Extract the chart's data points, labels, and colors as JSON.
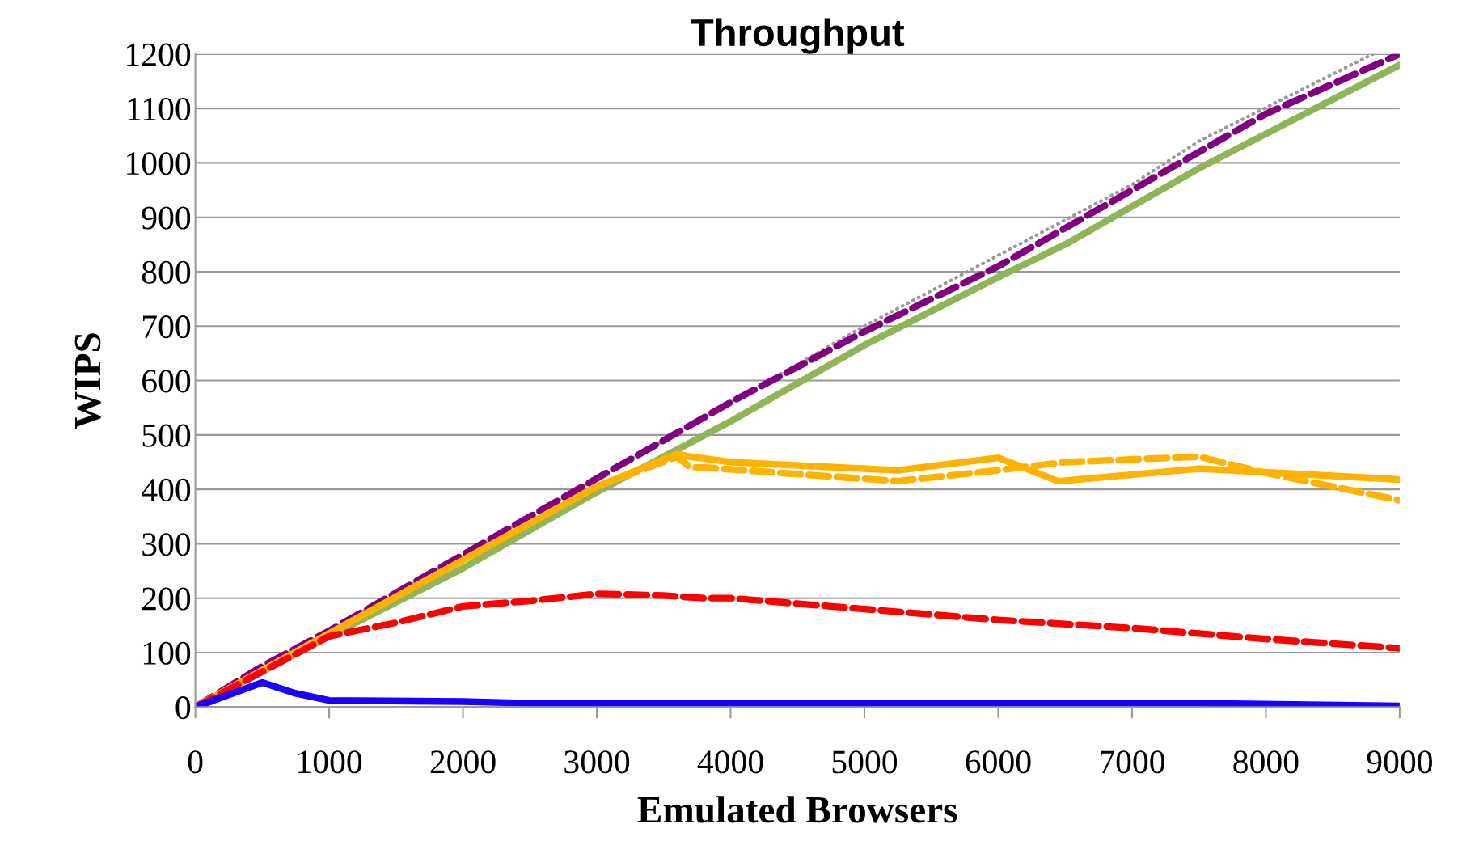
{
  "chart_data": {
    "type": "line",
    "title": "Throughput",
    "xlabel": "Emulated Browsers",
    "ylabel": "WIPS",
    "xlim": [
      0,
      9000
    ],
    "xticks": [
      0,
      1000,
      2000,
      3000,
      4000,
      5000,
      6000,
      7000,
      8000,
      9000
    ],
    "ylim": [
      0,
      1200
    ],
    "yticks": [
      0,
      100,
      200,
      300,
      400,
      500,
      600,
      700,
      800,
      900,
      1000,
      1100,
      1200
    ],
    "grid": "y",
    "legend": false,
    "marker": "none",
    "series": [
      {
        "color": "#999999",
        "line_style": "dotted",
        "x": [
          0,
          3000,
          5000,
          6000,
          7000,
          7500,
          8800
        ],
        "values": [
          0,
          420,
          700,
          830,
          960,
          1040,
          1200
        ]
      },
      {
        "color": "#800080",
        "line_style": "dashed",
        "x": [
          0,
          500,
          1000,
          2000,
          3000,
          4000,
          5000,
          6000,
          7000,
          8000,
          9000
        ],
        "values": [
          0,
          75,
          140,
          280,
          420,
          560,
          690,
          810,
          950,
          1090,
          1200
        ]
      },
      {
        "color": "#8fb556",
        "line_style": "solid",
        "x": [
          0,
          1000,
          2000,
          3000,
          4000,
          5000,
          6000,
          6500,
          7500,
          9000
        ],
        "values": [
          0,
          130,
          255,
          395,
          525,
          665,
          790,
          850,
          990,
          1180
        ]
      },
      {
        "color": "#ffb300",
        "line_style": "solid",
        "x": [
          0,
          1000,
          2000,
          3000,
          3600,
          3700,
          4000,
          5250,
          6000,
          6450,
          7500,
          9000
        ],
        "values": [
          0,
          135,
          270,
          405,
          465,
          460,
          450,
          435,
          458,
          415,
          438,
          418
        ]
      },
      {
        "color": "#ffb300",
        "line_style": "dashed",
        "x": [
          0,
          1000,
          2000,
          3000,
          3600,
          3700,
          3800,
          5250,
          6000,
          6500,
          7500,
          8000,
          9000
        ],
        "values": [
          0,
          135,
          270,
          405,
          460,
          440,
          440,
          415,
          435,
          450,
          460,
          430,
          380
        ]
      },
      {
        "color": "#ff0000",
        "line_style": "dashed",
        "x": [
          0,
          1000,
          1500,
          2000,
          2500,
          3000,
          3500,
          3800,
          4000,
          5000,
          6000,
          7000,
          8000,
          9000
        ],
        "values": [
          0,
          130,
          155,
          185,
          195,
          208,
          205,
          200,
          200,
          180,
          160,
          145,
          125,
          108
        ]
      },
      {
        "color": "#1a00ff",
        "line_style": "solid",
        "x": [
          0,
          500,
          750,
          1000,
          2000,
          2500,
          3000,
          7500,
          9000
        ],
        "values": [
          0,
          45,
          25,
          12,
          10,
          7,
          7,
          7,
          2
        ]
      }
    ]
  }
}
